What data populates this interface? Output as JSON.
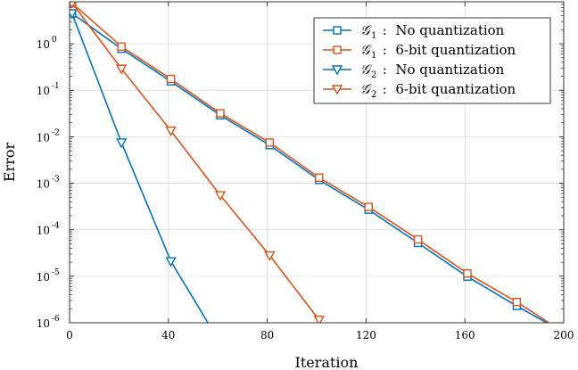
{
  "chart_data": {
    "type": "line",
    "yscale": "log",
    "xlabel": "Iteration",
    "ylabel": "Error",
    "xlim": [
      0,
      200
    ],
    "ylim": [
      1e-06,
      8
    ],
    "x_ticks": [
      0,
      40,
      80,
      120,
      160,
      200
    ],
    "x_tick_labels": [
      "0",
      "40",
      "80",
      "120",
      "160",
      "200"
    ],
    "y_ticks": [
      1e-06,
      1e-05,
      0.0001,
      0.001,
      0.01,
      0.1,
      1
    ],
    "y_tick_labels": [
      {
        "base": "10",
        "exp": "-6"
      },
      {
        "base": "10",
        "exp": "-5"
      },
      {
        "base": "10",
        "exp": "-4"
      },
      {
        "base": "10",
        "exp": "-3"
      },
      {
        "base": "10",
        "exp": "-2"
      },
      {
        "base": "10",
        "exp": "-1"
      },
      {
        "base": "10",
        "exp": "0"
      }
    ],
    "legend_position": "top-right",
    "series": [
      {
        "symbol": "𝒢",
        "sub": "1",
        "name": "No quantization",
        "label": " :  No quantization",
        "color": "#0072BD",
        "marker": "square",
        "x": [
          1,
          21,
          41,
          61,
          81,
          101,
          121,
          141,
          161,
          181,
          193
        ],
        "y": [
          4.5,
          0.78,
          0.155,
          0.029,
          0.0066,
          0.00118,
          0.00027,
          5.2e-05,
          9.8e-06,
          2.3e-06,
          1e-06
        ],
        "marker_count": 10
      },
      {
        "symbol": "𝒢",
        "sub": "1",
        "name": "6-bit quantization",
        "label": " :  6-bit quantization",
        "color": "#D95319",
        "marker": "square",
        "x": [
          1,
          21,
          41,
          61,
          81,
          101,
          121,
          141,
          161,
          181,
          194
        ],
        "y": [
          7.5,
          0.87,
          0.175,
          0.032,
          0.0075,
          0.00132,
          0.00031,
          6.2e-05,
          1.15e-05,
          2.8e-06,
          1e-06
        ],
        "marker_count": 10
      },
      {
        "symbol": "𝒢",
        "sub": "2",
        "name": "No quantization",
        "label": " :  No quantization",
        "color": "#0072BD",
        "marker": "triangle-down",
        "x": [
          1,
          21,
          41,
          56
        ],
        "y": [
          4.5,
          0.0075,
          2.1e-05,
          1e-06
        ],
        "marker_count": 3
      },
      {
        "symbol": "𝒢",
        "sub": "2",
        "name": "6-bit quantization",
        "label": " :  6-bit quantization",
        "color": "#D95319",
        "marker": "triangle-down",
        "x": [
          1,
          21,
          41,
          61,
          81,
          101
        ],
        "y": [
          7.5,
          0.29,
          0.0135,
          0.00055,
          2.8e-05,
          1.15e-06
        ],
        "marker_count": 6
      }
    ]
  }
}
